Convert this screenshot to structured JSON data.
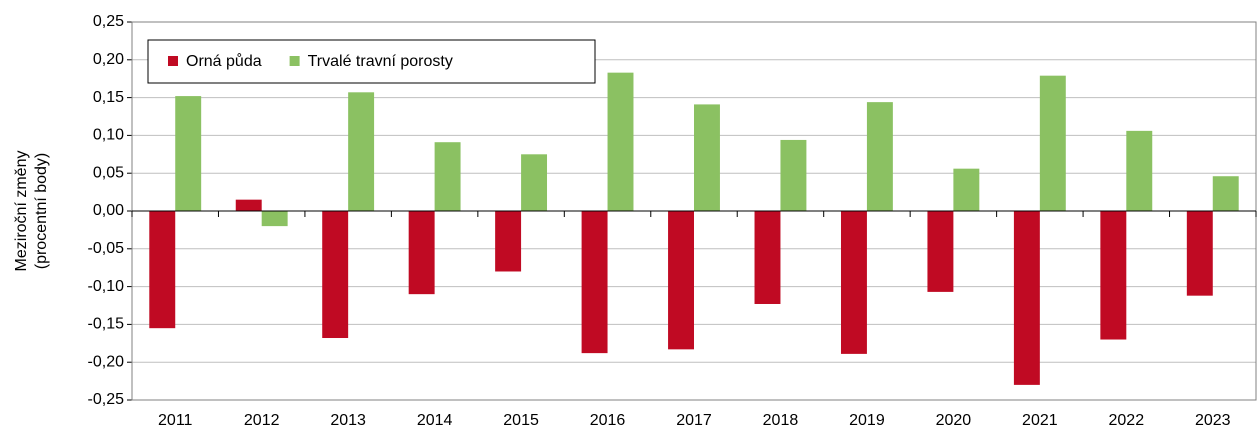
{
  "chart_data": {
    "type": "bar",
    "ylabel": [
      "Meziroční změny",
      "(procentní body)"
    ],
    "categories": [
      "2011",
      "2012",
      "2013",
      "2014",
      "2015",
      "2016",
      "2017",
      "2018",
      "2019",
      "2020",
      "2021",
      "2022",
      "2023"
    ],
    "series": [
      {
        "name": "Orná půda",
        "color": "#c00a23",
        "values": [
          -0.155,
          0.015,
          -0.168,
          -0.11,
          -0.08,
          -0.188,
          -0.183,
          -0.123,
          -0.189,
          -0.107,
          -0.23,
          -0.17,
          -0.112
        ]
      },
      {
        "name": "Trvalé travní porosty",
        "color": "#8bc162",
        "values": [
          0.152,
          -0.02,
          0.157,
          0.091,
          0.075,
          0.183,
          0.141,
          0.094,
          0.144,
          0.056,
          0.179,
          0.106,
          0.046
        ]
      }
    ],
    "ylim": [
      -0.25,
      0.25
    ],
    "yticks": [
      {
        "value": -0.25,
        "label": "-0,25"
      },
      {
        "value": -0.2,
        "label": "-0,20"
      },
      {
        "value": -0.15,
        "label": "-0,15"
      },
      {
        "value": -0.1,
        "label": "-0,10"
      },
      {
        "value": -0.05,
        "label": "-0,05"
      },
      {
        "value": 0,
        "label": "0,00"
      },
      {
        "value": 0.05,
        "label": "0,05"
      },
      {
        "value": 0.1,
        "label": "0,10"
      },
      {
        "value": 0.15,
        "label": "0,15"
      },
      {
        "value": 0.2,
        "label": "0,20"
      },
      {
        "value": 0.25,
        "label": "0,25"
      }
    ],
    "grid": true,
    "legend": "top-left"
  }
}
